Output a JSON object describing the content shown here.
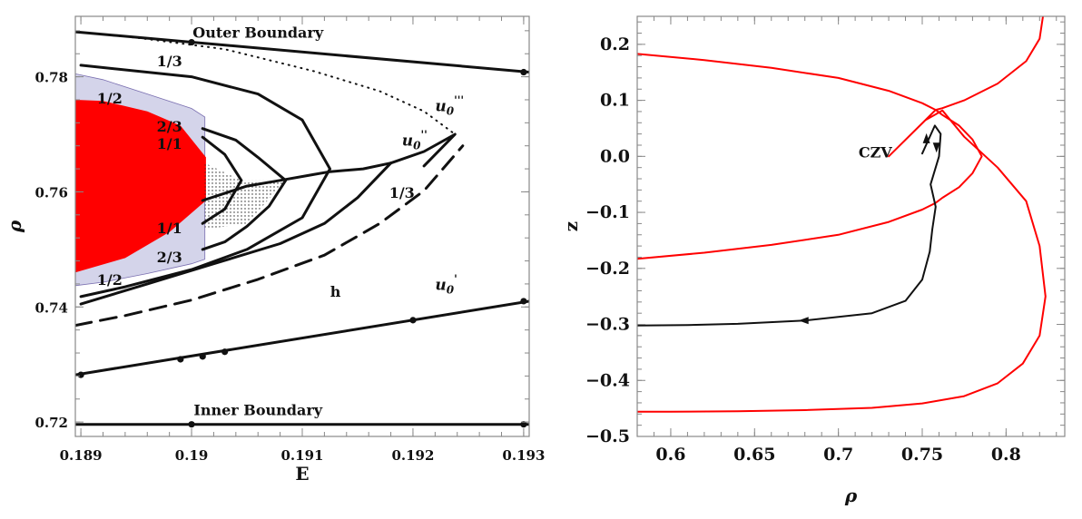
{
  "chart_data": [
    {
      "type": "line",
      "xlabel": "E",
      "ylabel": "ρ",
      "xlim": [
        0.18895,
        0.19305
      ],
      "ylim": [
        0.7175,
        0.7905
      ],
      "x_ticks": [
        0.189,
        0.19,
        0.191,
        0.192,
        0.193
      ],
      "x_tick_labels": [
        "0.189",
        "0.19",
        "0.191",
        "0.192",
        "0.193"
      ],
      "y_ticks": [
        0.72,
        0.74,
        0.76,
        0.78
      ],
      "y_tick_labels": [
        "0.72",
        "0.74",
        "0.76",
        "0.78"
      ],
      "regions": [
        {
          "name": "lavender-region",
          "color": "#d4d4ea",
          "boundary": [
            [
              0.18895,
              0.7805
            ],
            [
              0.1892,
              0.7795
            ],
            [
              0.1896,
              0.777
            ],
            [
              0.19,
              0.7745
            ],
            [
              0.19012,
              0.773
            ],
            [
              0.19012,
              0.7483
            ],
            [
              0.19,
              0.7475
            ],
            [
              0.1896,
              0.7458
            ],
            [
              0.1892,
              0.7443
            ],
            [
              0.18895,
              0.7437
            ]
          ]
        },
        {
          "name": "red-region",
          "color": "#ff0000",
          "boundary": [
            [
              0.18895,
              0.776
            ],
            [
              0.1892,
              0.7758
            ],
            [
              0.1896,
              0.774
            ],
            [
              0.1899,
              0.7715
            ],
            [
              0.19013,
              0.766
            ],
            [
              0.19013,
              0.7585
            ],
            [
              0.1898,
              0.753
            ],
            [
              0.1894,
              0.7485
            ],
            [
              0.18895,
              0.746
            ]
          ]
        }
      ],
      "series": [
        {
          "style": "solid",
          "width": 3,
          "x": [
            0.18895,
            0.19305
          ],
          "y": [
            0.7878,
            0.7808
          ]
        },
        {
          "style": "solid",
          "width": 3,
          "x": [
            0.18895,
            0.19305
          ],
          "y": [
            0.7196,
            0.7196
          ]
        },
        {
          "style": "solid",
          "width": 3,
          "x": [
            0.18895,
            0.19305
          ],
          "y": [
            0.7282,
            0.741
          ]
        },
        {
          "style": "dashed",
          "width": 3,
          "x": [
            0.18895,
            0.1894,
            0.19,
            0.1906,
            0.1912,
            0.1917,
            0.1921,
            0.19245
          ],
          "y": [
            0.7368,
            0.7385,
            0.7412,
            0.7448,
            0.749,
            0.7545,
            0.7602,
            0.768
          ]
        },
        {
          "style": "dotted",
          "width": 2,
          "x": [
            0.18895,
            0.1895,
            0.1903,
            0.1911,
            0.1917,
            0.1921,
            0.19238
          ],
          "y": [
            0.7878,
            0.7868,
            0.7848,
            0.781,
            0.7775,
            0.774,
            0.77
          ]
        },
        {
          "style": "solid",
          "width": 3,
          "x": [
            0.1918,
            0.1921,
            0.19238,
            0.1921
          ],
          "y": [
            0.765,
            0.767,
            0.77,
            0.7645
          ]
        },
        {
          "style": "solid",
          "width": 3,
          "x": [
            0.189,
            0.19,
            0.1906,
            0.191,
            0.19125,
            0.191,
            0.1905,
            0.19,
            0.1894,
            0.189
          ],
          "y": [
            0.782,
            0.78,
            0.777,
            0.7725,
            0.764,
            0.7555,
            0.75,
            0.7465,
            0.7435,
            0.7418
          ]
        },
        {
          "style": "solid",
          "width": 3,
          "x": [
            0.1901,
            0.1903,
            0.19045,
            0.1903,
            0.1901
          ],
          "y": [
            0.7695,
            0.7665,
            0.762,
            0.757,
            0.7545
          ]
        },
        {
          "style": "solid",
          "width": 3,
          "x": [
            0.1901,
            0.1904,
            0.1906,
            0.19085,
            0.1907,
            0.1905,
            0.1903,
            0.1901
          ],
          "y": [
            0.771,
            0.769,
            0.766,
            0.762,
            0.7575,
            0.754,
            0.7513,
            0.75
          ]
        },
        {
          "style": "solid",
          "width": 3,
          "x": [
            0.1901,
            0.1905,
            0.1908,
            0.1911,
            0.19125,
            0.19155,
            0.1918
          ],
          "y": [
            0.7585,
            0.761,
            0.762,
            0.763,
            0.7635,
            0.764,
            0.765
          ]
        },
        {
          "style": "solid",
          "width": 3,
          "x": [
            0.189,
            0.1896,
            0.1902,
            0.1908,
            0.1912,
            0.1915,
            0.1918
          ],
          "y": [
            0.7405,
            0.744,
            0.7475,
            0.751,
            0.7545,
            0.759,
            0.765
          ]
        }
      ],
      "points": [
        [
          0.19,
          0.786
        ],
        [
          0.193,
          0.7808
        ],
        [
          0.19,
          0.7196
        ],
        [
          0.193,
          0.7196
        ],
        [
          0.189,
          0.7282
        ],
        [
          0.1899,
          0.7309
        ],
        [
          0.1901,
          0.7314
        ],
        [
          0.1903,
          0.7322
        ],
        [
          0.192,
          0.7377
        ],
        [
          0.193,
          0.741
        ]
      ],
      "annotations": [
        {
          "text": "Outer Boundary",
          "x": 0.1906,
          "y": 0.7868
        },
        {
          "text": "Inner Boundary",
          "x": 0.1906,
          "y": 0.7212
        },
        {
          "text": "1/3",
          "x": 0.1898,
          "y": 0.7818
        },
        {
          "text": "1/2",
          "x": 0.18926,
          "y": 0.7754
        },
        {
          "text": "2/3",
          "x": 0.1898,
          "y": 0.7705
        },
        {
          "text": "1/1",
          "x": 0.1898,
          "y": 0.7675
        },
        {
          "text": "1/3",
          "x": 0.1919,
          "y": 0.759
        },
        {
          "text": "1/1",
          "x": 0.1898,
          "y": 0.7528
        },
        {
          "text": "2/3",
          "x": 0.1898,
          "y": 0.7478
        },
        {
          "text": "1/2",
          "x": 0.18926,
          "y": 0.7438
        },
        {
          "text": "h",
          "x": 0.1913,
          "y": 0.7418
        },
        {
          "text": "u",
          "sup": "'''",
          "x": 0.1922,
          "y": 0.774
        },
        {
          "text": "u",
          "sup": "''",
          "x": 0.1919,
          "y": 0.768
        },
        {
          "text": "u",
          "sup": "'",
          "x": 0.1922,
          "y": 0.743
        }
      ]
    },
    {
      "type": "line",
      "xlabel": "ρ",
      "ylabel": "z",
      "xlim": [
        0.58,
        0.835
      ],
      "ylim": [
        -0.5,
        0.25
      ],
      "x_ticks": [
        0.6,
        0.65,
        0.7,
        0.75,
        0.8
      ],
      "x_tick_labels": [
        "0.6",
        "0.65",
        "0.7",
        "0.75",
        "0.8"
      ],
      "y_ticks": [
        -0.5,
        -0.4,
        -0.3,
        -0.2,
        -0.1,
        0.0,
        0.1,
        0.2
      ],
      "y_tick_labels": [
        "−0.5",
        "−0.4",
        "−0.3",
        "−0.2",
        "−0.1",
        "0.0",
        "0.1",
        "0.2"
      ],
      "series": [
        {
          "name": "CZV",
          "color": "#ff0000",
          "x": [
            0.58,
            0.62,
            0.66,
            0.7,
            0.73,
            0.75,
            0.758,
            0.762,
            0.772,
            0.78,
            0.7855,
            0.78,
            0.772,
            0.762,
            0.758,
            0.75,
            0.73,
            0.7,
            0.66,
            0.62,
            0.58
          ],
          "y": [
            0.183,
            0.172,
            0.158,
            0.14,
            0.117,
            0.095,
            0.083,
            0.074,
            0.055,
            0.03,
            0.0,
            -0.03,
            -0.055,
            -0.074,
            -0.083,
            -0.095,
            -0.117,
            -0.14,
            -0.158,
            -0.172,
            -0.183
          ]
        },
        {
          "name": "",
          "color": "#ff0000",
          "x": [
            0.822,
            0.82,
            0.812,
            0.795,
            0.775,
            0.762,
            0.758,
            0.73,
            0.752,
            0.758,
            0.762,
            0.775,
            0.795,
            0.812,
            0.82,
            0.8235,
            0.82,
            0.81,
            0.795,
            0.775,
            0.75,
            0.72,
            0.68,
            0.64,
            0.6,
            0.58
          ],
          "y": [
            0.25,
            0.21,
            0.17,
            0.13,
            0.1,
            0.086,
            0.083,
            0.0,
            0.065,
            0.075,
            0.082,
            0.035,
            -0.02,
            -0.08,
            -0.16,
            -0.25,
            -0.32,
            -0.37,
            -0.405,
            -0.428,
            -0.441,
            -0.449,
            -0.453,
            -0.455,
            -0.456,
            -0.456
          ]
        },
        {
          "name": "",
          "color": "#111111",
          "x": [
            0.75,
            0.7575,
            0.761,
            0.76,
            0.755,
            0.758,
            0.756,
            0.7545,
            0.75,
            0.74,
            0.72,
            0.68,
            0.64,
            0.61,
            0.58
          ],
          "y": [
            0.005,
            0.055,
            0.04,
            0.0,
            -0.05,
            -0.09,
            -0.13,
            -0.17,
            -0.22,
            -0.258,
            -0.28,
            -0.293,
            -0.299,
            -0.301,
            -0.302
          ]
        }
      ],
      "annotations": [
        {
          "text": "CZV",
          "x": 0.722,
          "y": -0.002
        }
      ],
      "arrows": [
        [
          0.7525,
          0.03
        ],
        [
          0.7585,
          0.018
        ],
        [
          0.68,
          -0.293
        ]
      ]
    }
  ]
}
